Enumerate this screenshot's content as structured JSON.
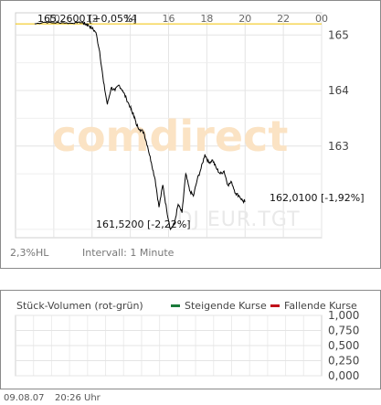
{
  "chart_data": [
    {
      "type": "line",
      "title": "",
      "watermark": "comdirect",
      "symbol": "DJ EUR.TGT",
      "x_ticks": [
        "10",
        "12",
        "14",
        "16",
        "18",
        "20",
        "22",
        "00"
      ],
      "y_ticks": [
        "165",
        "164",
        "163"
      ],
      "ylim": [
        161.35,
        165.4
      ],
      "reference_line": {
        "value": 165.2,
        "color": "#f0c000"
      },
      "x": [
        9.0,
        9.5,
        10.0,
        10.5,
        11.0,
        11.25,
        11.5,
        11.65,
        11.8,
        12.0,
        12.2,
        12.4,
        12.6,
        12.8,
        13.0,
        13.2,
        13.4,
        13.6,
        13.8,
        14.0,
        14.1,
        14.2,
        14.3,
        14.5,
        14.7,
        14.9,
        15.1,
        15.3,
        15.5,
        15.7,
        15.9,
        16.1,
        16.3,
        16.5,
        16.7,
        16.9,
        17.1,
        17.3,
        17.5,
        17.7,
        17.9,
        18.1,
        18.3,
        18.5,
        18.7,
        18.9,
        19.1,
        19.3,
        19.5,
        19.7,
        19.9,
        20.0
      ],
      "y": [
        165.2,
        165.23,
        165.22,
        165.22,
        165.21,
        165.23,
        165.22,
        165.2,
        165.18,
        165.12,
        165.05,
        164.7,
        164.15,
        163.75,
        164.05,
        164.0,
        164.1,
        164.0,
        163.85,
        163.7,
        163.6,
        163.55,
        163.4,
        163.3,
        163.25,
        163.0,
        162.7,
        162.4,
        161.9,
        162.3,
        161.85,
        161.5,
        161.6,
        161.95,
        161.8,
        162.5,
        162.2,
        162.1,
        162.4,
        162.6,
        162.85,
        162.7,
        162.75,
        162.6,
        162.5,
        162.55,
        162.3,
        162.35,
        162.15,
        162.1,
        162.0,
        162.01
      ],
      "annotations": {
        "open": "165,2600 [+0,05%]",
        "low": "161,5200 [-2,22%]",
        "last": "162,0100 [-1,92%]"
      },
      "info_left": "2,3%HL",
      "info_interval": "Intervall: 1 Minute",
      "line_color": "#000000"
    },
    {
      "type": "bar",
      "title": "Stück-Volumen (rot-grün)",
      "y_ticks": [
        "1,000",
        "0,750",
        "0,500",
        "0,250",
        "0,000"
      ],
      "ylim": [
        0,
        1
      ],
      "series": [
        {
          "name": "Steigende Kurse",
          "color": "#1a7a3a",
          "values": []
        },
        {
          "name": "Fallende Kurse",
          "color": "#c0101a",
          "values": []
        }
      ]
    }
  ],
  "footer": {
    "date": "09.08.07",
    "time": "20:26 Uhr"
  }
}
